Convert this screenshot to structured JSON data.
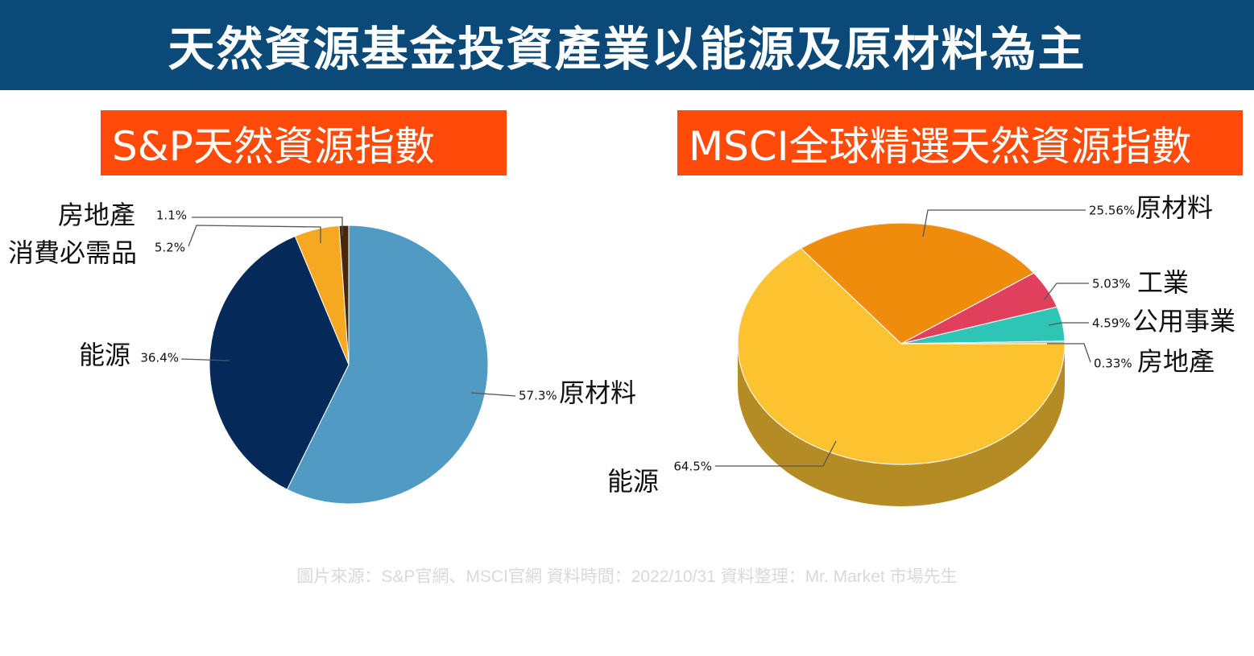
{
  "title": "天然資源基金投資產業以能源及原材料為主",
  "source_note": "圖片來源：S&P官網、MSCI官網  資料時間：2022/10/31  資料整理：Mr. Market 市場先生",
  "colors": {
    "banner": "#0b4a78",
    "subtitle_bg": "#ff4a0a",
    "sp_raw": "#4f9bc3",
    "sp_energy": "#042a5a",
    "sp_staples": "#f6a821",
    "sp_realestate": "#4a2608",
    "msci_energy": "#fcc331",
    "msci_raw": "#f08c0c",
    "msci_industrial": "#e0405c",
    "msci_utilities": "#2ec4b6",
    "msci_realestate": "#b8b8b8"
  },
  "chart_data": [
    {
      "type": "pie",
      "title": "S&P天然資源指數",
      "slices": [
        {
          "label": "原材料",
          "value": 57.3,
          "value_label": "57.3%"
        },
        {
          "label": "能源",
          "value": 36.4,
          "value_label": "36.4%"
        },
        {
          "label": "消費必需品",
          "value": 5.2,
          "value_label": "5.2%"
        },
        {
          "label": "房地產",
          "value": 1.1,
          "value_label": "1.1%"
        }
      ]
    },
    {
      "type": "pie",
      "title": "MSCI全球精選天然資源指數",
      "style": "3d",
      "slices": [
        {
          "label": "能源",
          "value": 64.5,
          "value_label": "64.5%"
        },
        {
          "label": "原材料",
          "value": 25.56,
          "value_label": "25.56%"
        },
        {
          "label": "工業",
          "value": 5.03,
          "value_label": "5.03%"
        },
        {
          "label": "公用事業",
          "value": 4.59,
          "value_label": "4.59%"
        },
        {
          "label": "房地產",
          "value": 0.33,
          "value_label": "0.33%"
        }
      ]
    }
  ]
}
